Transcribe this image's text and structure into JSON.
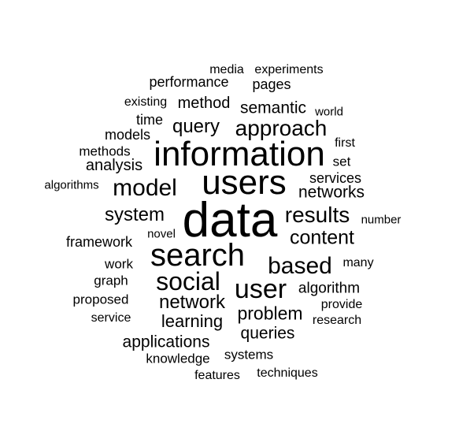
{
  "wordcloud": {
    "text_color": "#000000",
    "background": "#ffffff",
    "words": [
      "data",
      "information",
      "users",
      "search",
      "user",
      "social",
      "based",
      "model",
      "approach",
      "results",
      "content",
      "system",
      "query",
      "network",
      "problem",
      "learning",
      "networks",
      "applications",
      "queries",
      "semantic",
      "method",
      "analysis",
      "algorithm",
      "services",
      "pages",
      "performance",
      "framework",
      "models",
      "time",
      "methods",
      "experiments",
      "media",
      "existing",
      "world",
      "first",
      "set",
      "number",
      "novel",
      "many",
      "work",
      "graph",
      "proposed",
      "provide",
      "service",
      "research",
      "systems",
      "knowledge",
      "features",
      "techniques",
      "algorithms"
    ]
  }
}
